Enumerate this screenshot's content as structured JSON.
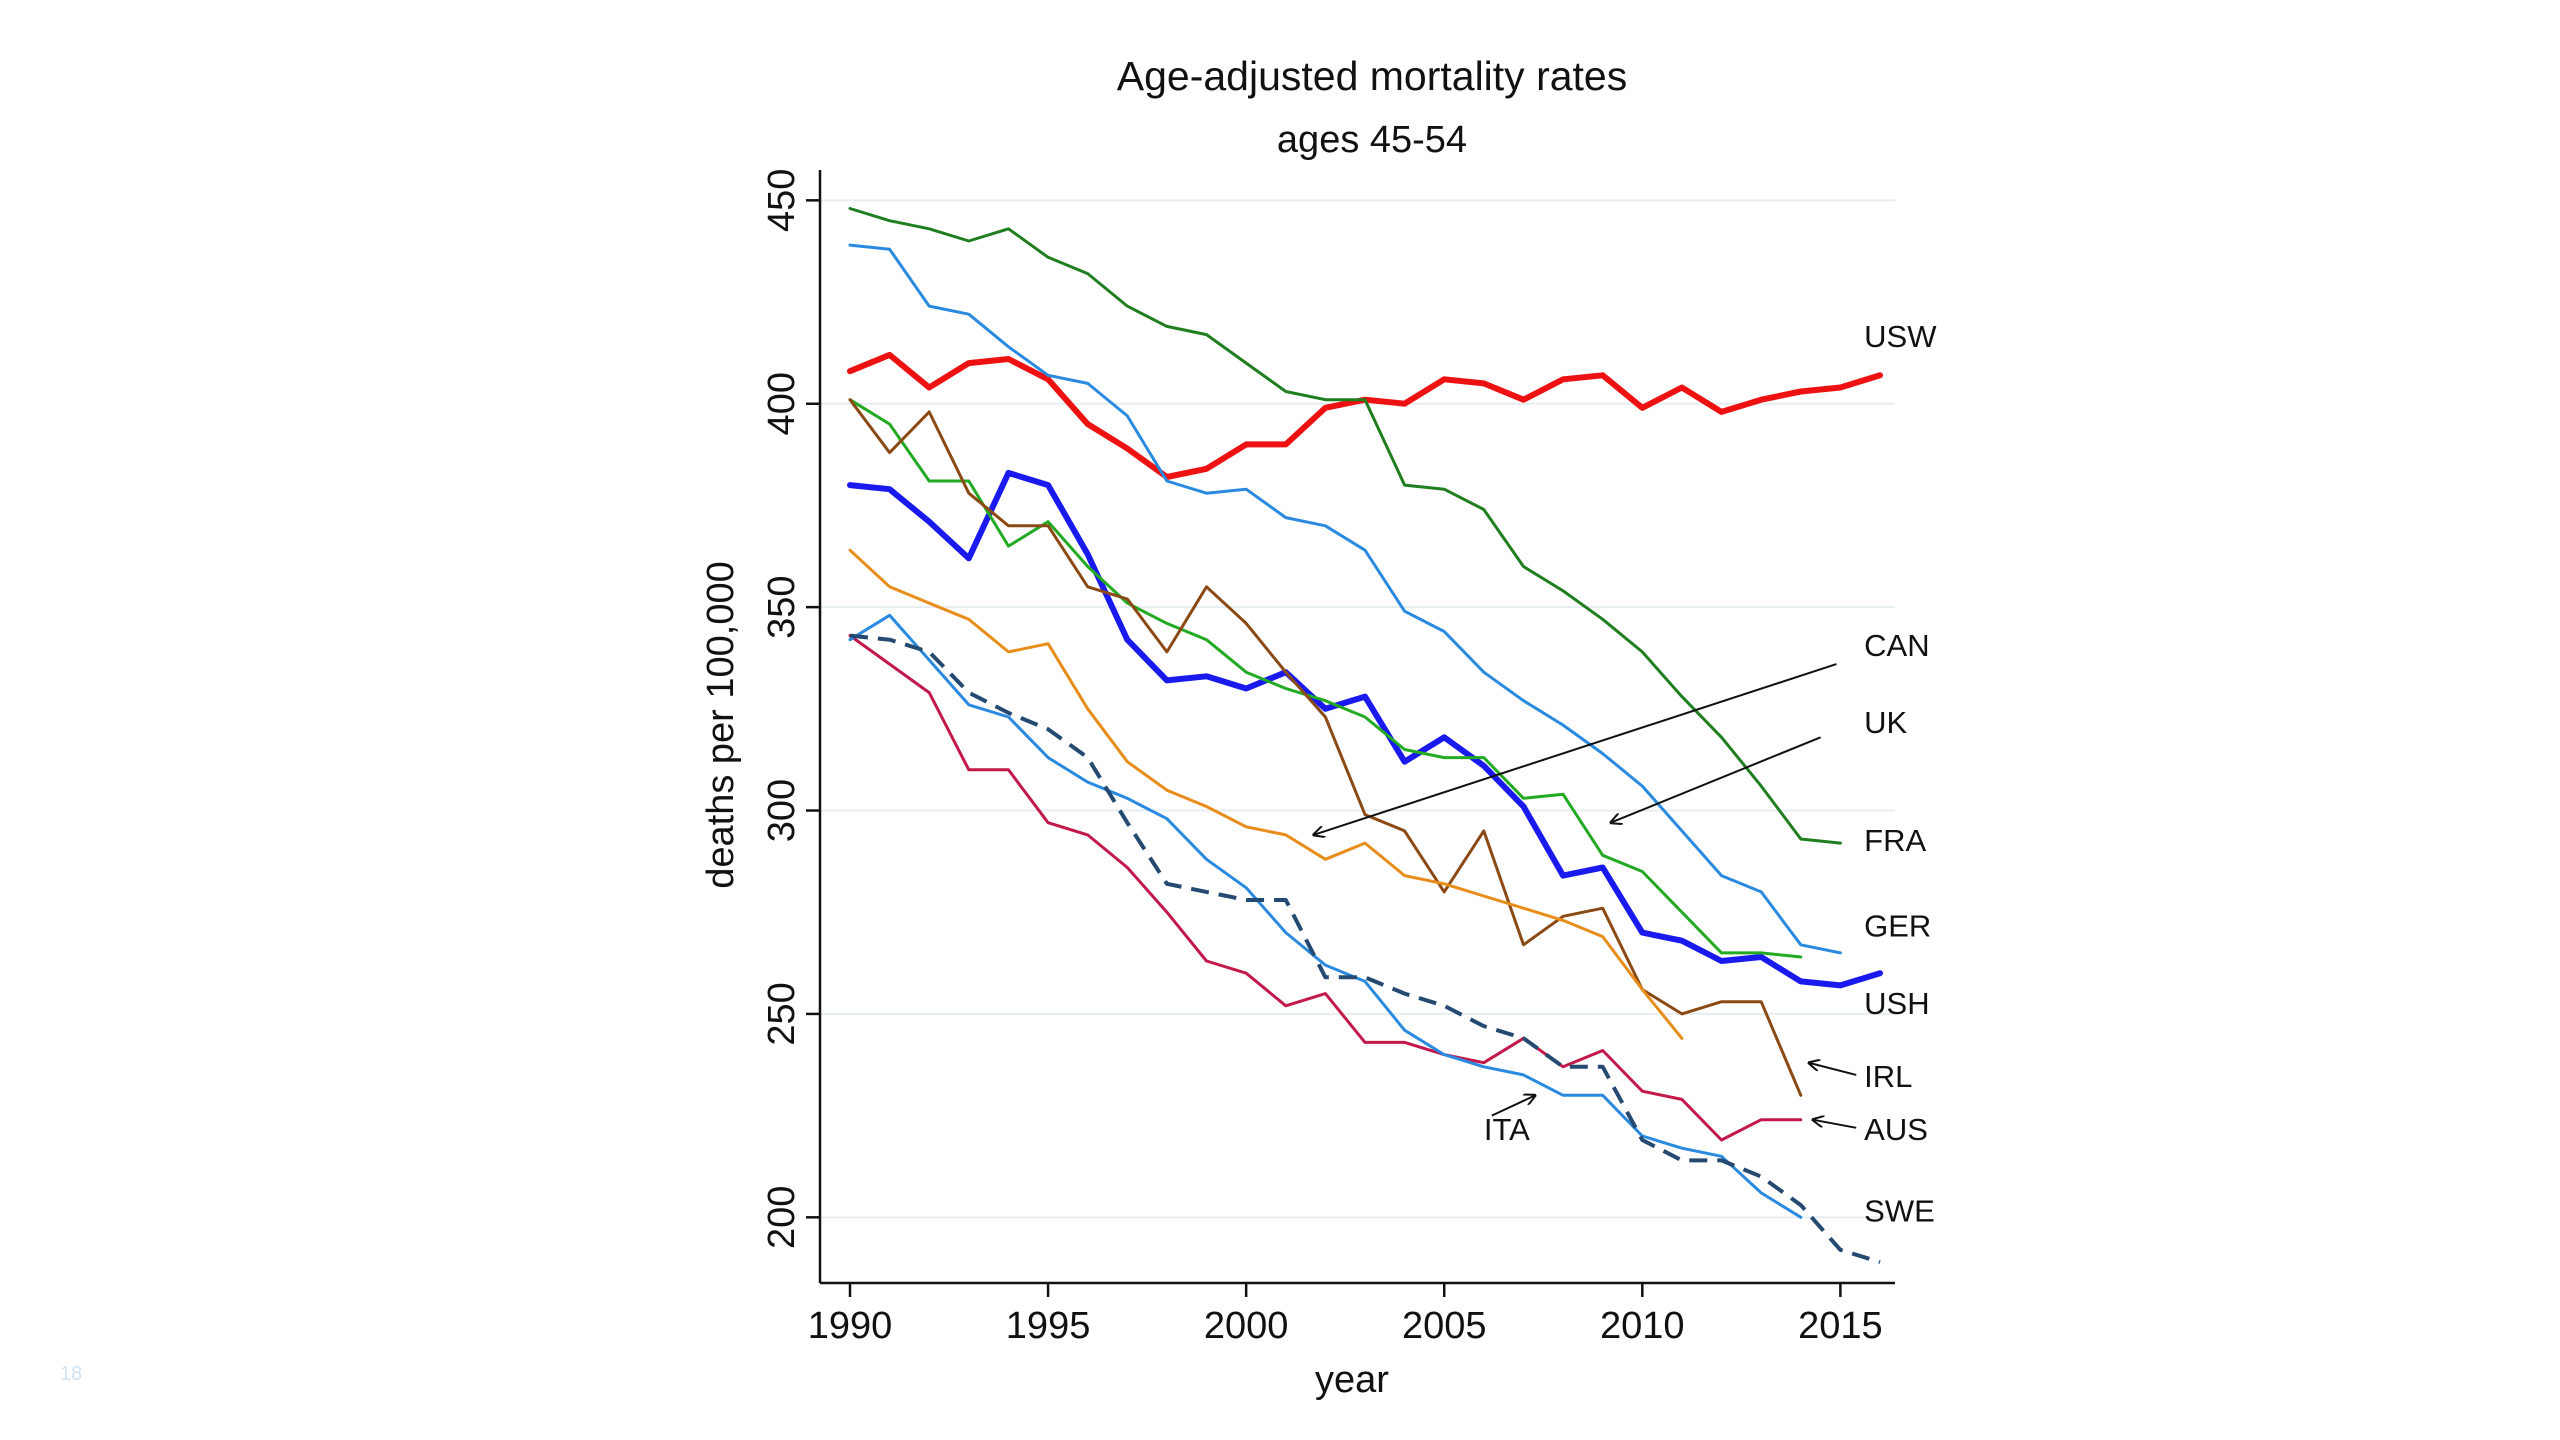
{
  "slide_number": "18",
  "chart_data": {
    "type": "line",
    "title": "Age-adjusted mortality rates",
    "subtitle": "ages 45-54",
    "xlabel": "year",
    "ylabel": "deaths per 100,000",
    "xlim": [
      1990,
      2016
    ],
    "ylim": [
      190,
      455
    ],
    "xticks": [
      1990,
      1995,
      2000,
      2005,
      2010,
      2015
    ],
    "yticks": [
      200,
      250,
      300,
      350,
      400,
      450
    ],
    "grid": "horizontal",
    "legend": "none",
    "series": [
      {
        "name": "USW",
        "color": "#ee1111",
        "width": 6,
        "dash": "",
        "x": [
          1990,
          1991,
          1992,
          1993,
          1994,
          1995,
          1996,
          1997,
          1998,
          1999,
          2000,
          2001,
          2002,
          2003,
          2004,
          2005,
          2006,
          2007,
          2008,
          2009,
          2010,
          2011,
          2012,
          2013,
          2014,
          2015,
          2016
        ],
        "y": [
          408,
          412,
          404,
          410,
          411,
          406,
          395,
          389,
          382,
          384,
          390,
          390,
          399,
          401,
          400,
          406,
          405,
          401,
          406,
          407,
          399,
          404,
          398,
          401,
          403,
          404,
          407
        ]
      },
      {
        "name": "USH",
        "color": "#1a1aee",
        "width": 6,
        "dash": "",
        "x": [
          1990,
          1991,
          1992,
          1993,
          1994,
          1995,
          1996,
          1997,
          1998,
          1999,
          2000,
          2001,
          2002,
          2003,
          2004,
          2005,
          2006,
          2007,
          2008,
          2009,
          2010,
          2011,
          2012,
          2013,
          2014,
          2015,
          2016
        ],
        "y": [
          380,
          379,
          371,
          362,
          383,
          380,
          363,
          342,
          332,
          333,
          330,
          334,
          325,
          328,
          312,
          318,
          311,
          301,
          284,
          286,
          270,
          268,
          263,
          264,
          258,
          257,
          260
        ]
      },
      {
        "name": "FRA",
        "color": "#1f7f1f",
        "width": 3,
        "dash": "",
        "x": [
          1990,
          1991,
          1992,
          1993,
          1994,
          1995,
          1996,
          1997,
          1998,
          1999,
          2000,
          2001,
          2002,
          2003,
          2004,
          2005,
          2006,
          2007,
          2008,
          2009,
          2010,
          2011,
          2012,
          2013,
          2014,
          2015
        ],
        "y": [
          448,
          445,
          443,
          440,
          443,
          436,
          432,
          424,
          419,
          417,
          410,
          403,
          401,
          401,
          380,
          379,
          374,
          360,
          354,
          347,
          339,
          328,
          318,
          306,
          293,
          292
        ]
      },
      {
        "name": "GER",
        "color": "#2a8ae0",
        "width": 3,
        "dash": "",
        "x": [
          1990,
          1991,
          1992,
          1993,
          1994,
          1995,
          1996,
          1997,
          1998,
          1999,
          2000,
          2001,
          2002,
          2003,
          2004,
          2005,
          2006,
          2007,
          2008,
          2009,
          2010,
          2011,
          2012,
          2013,
          2014,
          2015
        ],
        "y": [
          439,
          438,
          424,
          422,
          414,
          407,
          405,
          397,
          381,
          378,
          379,
          372,
          370,
          364,
          349,
          344,
          334,
          327,
          321,
          314,
          306,
          295,
          284,
          280,
          267,
          265
        ]
      },
      {
        "name": "UK",
        "color": "#22aa22",
        "width": 3,
        "dash": "",
        "x": [
          1990,
          1991,
          1992,
          1993,
          1994,
          1995,
          1996,
          1997,
          1998,
          1999,
          2000,
          2001,
          2002,
          2003,
          2004,
          2005,
          2006,
          2007,
          2008,
          2009,
          2010,
          2011,
          2012,
          2013,
          2014
        ],
        "y": [
          401,
          395,
          381,
          381,
          365,
          371,
          360,
          351,
          346,
          342,
          334,
          330,
          327,
          323,
          315,
          313,
          313,
          303,
          304,
          289,
          285,
          275,
          265,
          265,
          264
        ]
      },
      {
        "name": "IRL",
        "color": "#8b4a14",
        "width": 3,
        "dash": "",
        "x": [
          1990,
          1991,
          1992,
          1993,
          1994,
          1995,
          1996,
          1997,
          1998,
          1999,
          2000,
          2001,
          2002,
          2003,
          2004,
          2005,
          2006,
          2007,
          2008,
          2009,
          2010,
          2011,
          2012,
          2013,
          2014
        ],
        "y": [
          401,
          388,
          398,
          378,
          370,
          370,
          355,
          352,
          339,
          355,
          346,
          334,
          323,
          299,
          295,
          280,
          295,
          267,
          274,
          276,
          256,
          250,
          253,
          253,
          230
        ]
      },
      {
        "name": "CAN",
        "color": "#e88c1a",
        "width": 3,
        "dash": "",
        "x": [
          1990,
          1991,
          1992,
          1993,
          1994,
          1995,
          1996,
          1997,
          1998,
          1999,
          2000,
          2001,
          2002,
          2003,
          2004,
          2005,
          2006,
          2007,
          2008,
          2009,
          2010,
          2011
        ],
        "y": [
          364,
          355,
          351,
          347,
          339,
          341,
          325,
          312,
          305,
          301,
          296,
          294,
          288,
          292,
          284,
          282,
          279,
          276,
          273,
          269,
          256,
          244
        ]
      },
      {
        "name": "AUS",
        "color": "#c2184a",
        "width": 3,
        "dash": "",
        "x": [
          1990,
          1991,
          1992,
          1993,
          1994,
          1995,
          1996,
          1997,
          1998,
          1999,
          2000,
          2001,
          2002,
          2003,
          2004,
          2005,
          2006,
          2007,
          2008,
          2009,
          2010,
          2011,
          2012,
          2013,
          2014
        ],
        "y": [
          343,
          336,
          329,
          310,
          310,
          297,
          294,
          286,
          275,
          263,
          260,
          252,
          255,
          243,
          243,
          240,
          238,
          244,
          237,
          241,
          231,
          229,
          219,
          224,
          224
        ]
      },
      {
        "name": "SWE",
        "color": "#2a8ae0",
        "width": 3,
        "dash": "",
        "x": [
          1990,
          1991,
          1992,
          1993,
          1994,
          1995,
          1996,
          1997,
          1998,
          1999,
          2000,
          2001,
          2002,
          2003,
          2004,
          2005,
          2006,
          2007,
          2008,
          2009,
          2010,
          2011,
          2012,
          2013,
          2014
        ],
        "y": [
          342,
          348,
          337,
          326,
          323,
          313,
          307,
          303,
          298,
          288,
          281,
          270,
          262,
          258,
          246,
          240,
          237,
          235,
          230,
          230,
          220,
          217,
          215,
          206,
          200
        ]
      },
      {
        "name": "ITA",
        "color": "#254a72",
        "width": 4,
        "dash": "18 10",
        "x": [
          1990,
          1991,
          1992,
          1993,
          1994,
          1995,
          1996,
          1997,
          1998,
          1999,
          2000,
          2001,
          2002,
          2003,
          2004,
          2005,
          2006,
          2007,
          2008,
          2009,
          2010,
          2011,
          2012,
          2013,
          2014,
          2015,
          2016
        ],
        "y": [
          343,
          342,
          339,
          329,
          324,
          320,
          313,
          297,
          282,
          280,
          278,
          278,
          259,
          259,
          255,
          252,
          247,
          244,
          237,
          237,
          219,
          214,
          214,
          210,
          203,
          192,
          189
        ]
      }
    ],
    "labels": [
      {
        "name": "USW",
        "x": 2015.6,
        "y": 414,
        "arrow_to": null
      },
      {
        "name": "CAN",
        "x": 2015.6,
        "y": 338,
        "arrow_from": [
          2014.9,
          336
        ],
        "arrow_to": [
          2001.7,
          294
        ]
      },
      {
        "name": "UK",
        "x": 2015.6,
        "y": 319,
        "arrow_from": [
          2014.5,
          318
        ],
        "arrow_to": [
          2009.2,
          297
        ]
      },
      {
        "name": "FRA",
        "x": 2015.6,
        "y": 290,
        "arrow_to": null
      },
      {
        "name": "GER",
        "x": 2015.6,
        "y": 269,
        "arrow_to": null
      },
      {
        "name": "USH",
        "x": 2015.6,
        "y": 250,
        "arrow_to": null
      },
      {
        "name": "IRL",
        "x": 2015.6,
        "y": 232,
        "arrow_from": [
          2015.4,
          235
        ],
        "arrow_to": [
          2014.2,
          238
        ]
      },
      {
        "name": "AUS",
        "x": 2015.6,
        "y": 219,
        "arrow_from": [
          2015.4,
          222
        ],
        "arrow_to": [
          2014.3,
          224
        ]
      },
      {
        "name": "SWE",
        "x": 2015.6,
        "y": 199,
        "arrow_to": null
      },
      {
        "name": "ITA",
        "x": 2006.0,
        "y": 219,
        "arrow_from": [
          2006.2,
          225
        ],
        "arrow_to": [
          2007.3,
          230
        ]
      }
    ]
  }
}
